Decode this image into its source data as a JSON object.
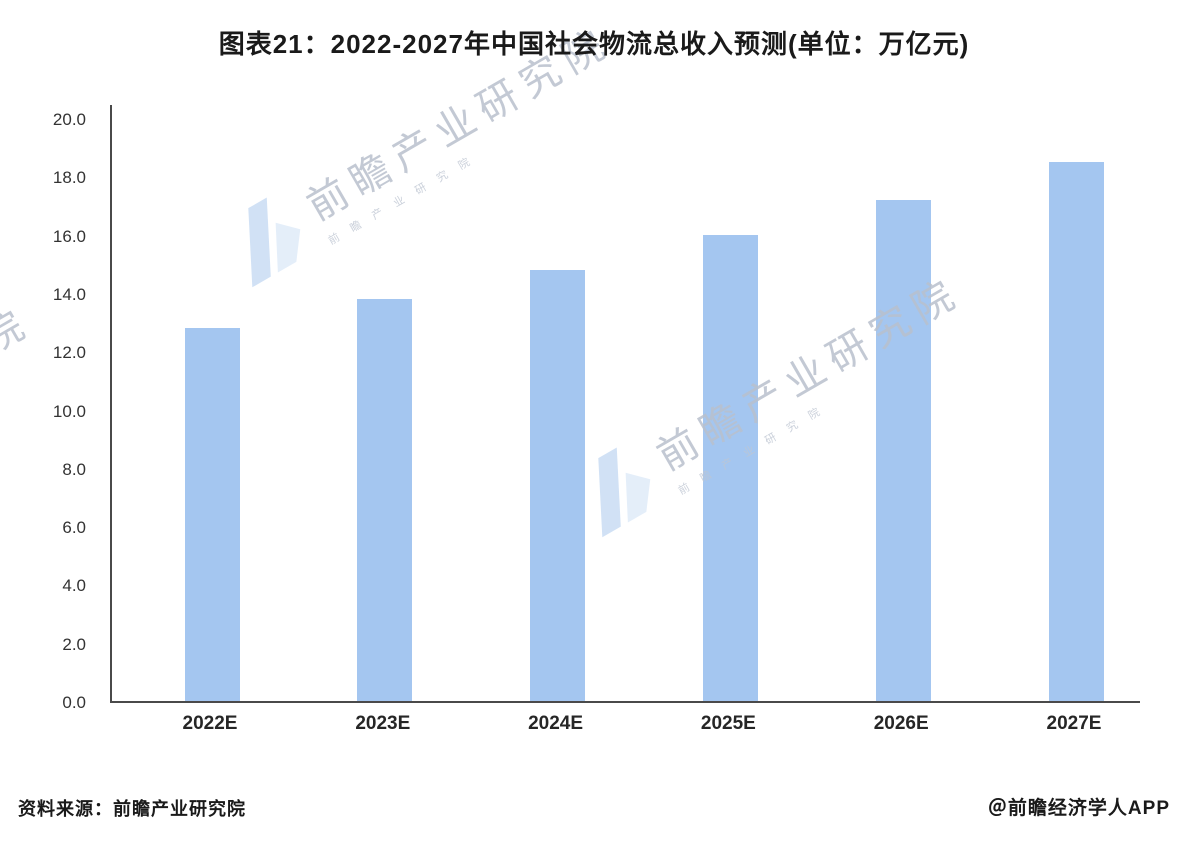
{
  "title": "图表21：2022-2027年中国社会物流总收入预测(单位：万亿元)",
  "footer": {
    "source": "资料来源：前瞻产业研究院",
    "credit": "＠前瞻经济学人APP"
  },
  "watermark": {
    "text": "前瞻产业研究院",
    "subtext": "前瞻产业研究院"
  },
  "chart_data": {
    "type": "bar",
    "categories": [
      "2022E",
      "2023E",
      "2024E",
      "2025E",
      "2026E",
      "2027E"
    ],
    "values": [
      12.8,
      13.8,
      14.8,
      16.0,
      17.2,
      18.5
    ],
    "title": "图表21：2022-2027年中国社会物流总收入预测(单位：万亿元)",
    "xlabel": "",
    "ylabel": "",
    "unit": "万亿元",
    "ylim": [
      0,
      20
    ],
    "ytick_step": 2,
    "ytick_format_decimals": 1,
    "bar_color": "#A4C6F0",
    "axis_color": "#4a4a4a",
    "grid": false,
    "legend": false
  }
}
